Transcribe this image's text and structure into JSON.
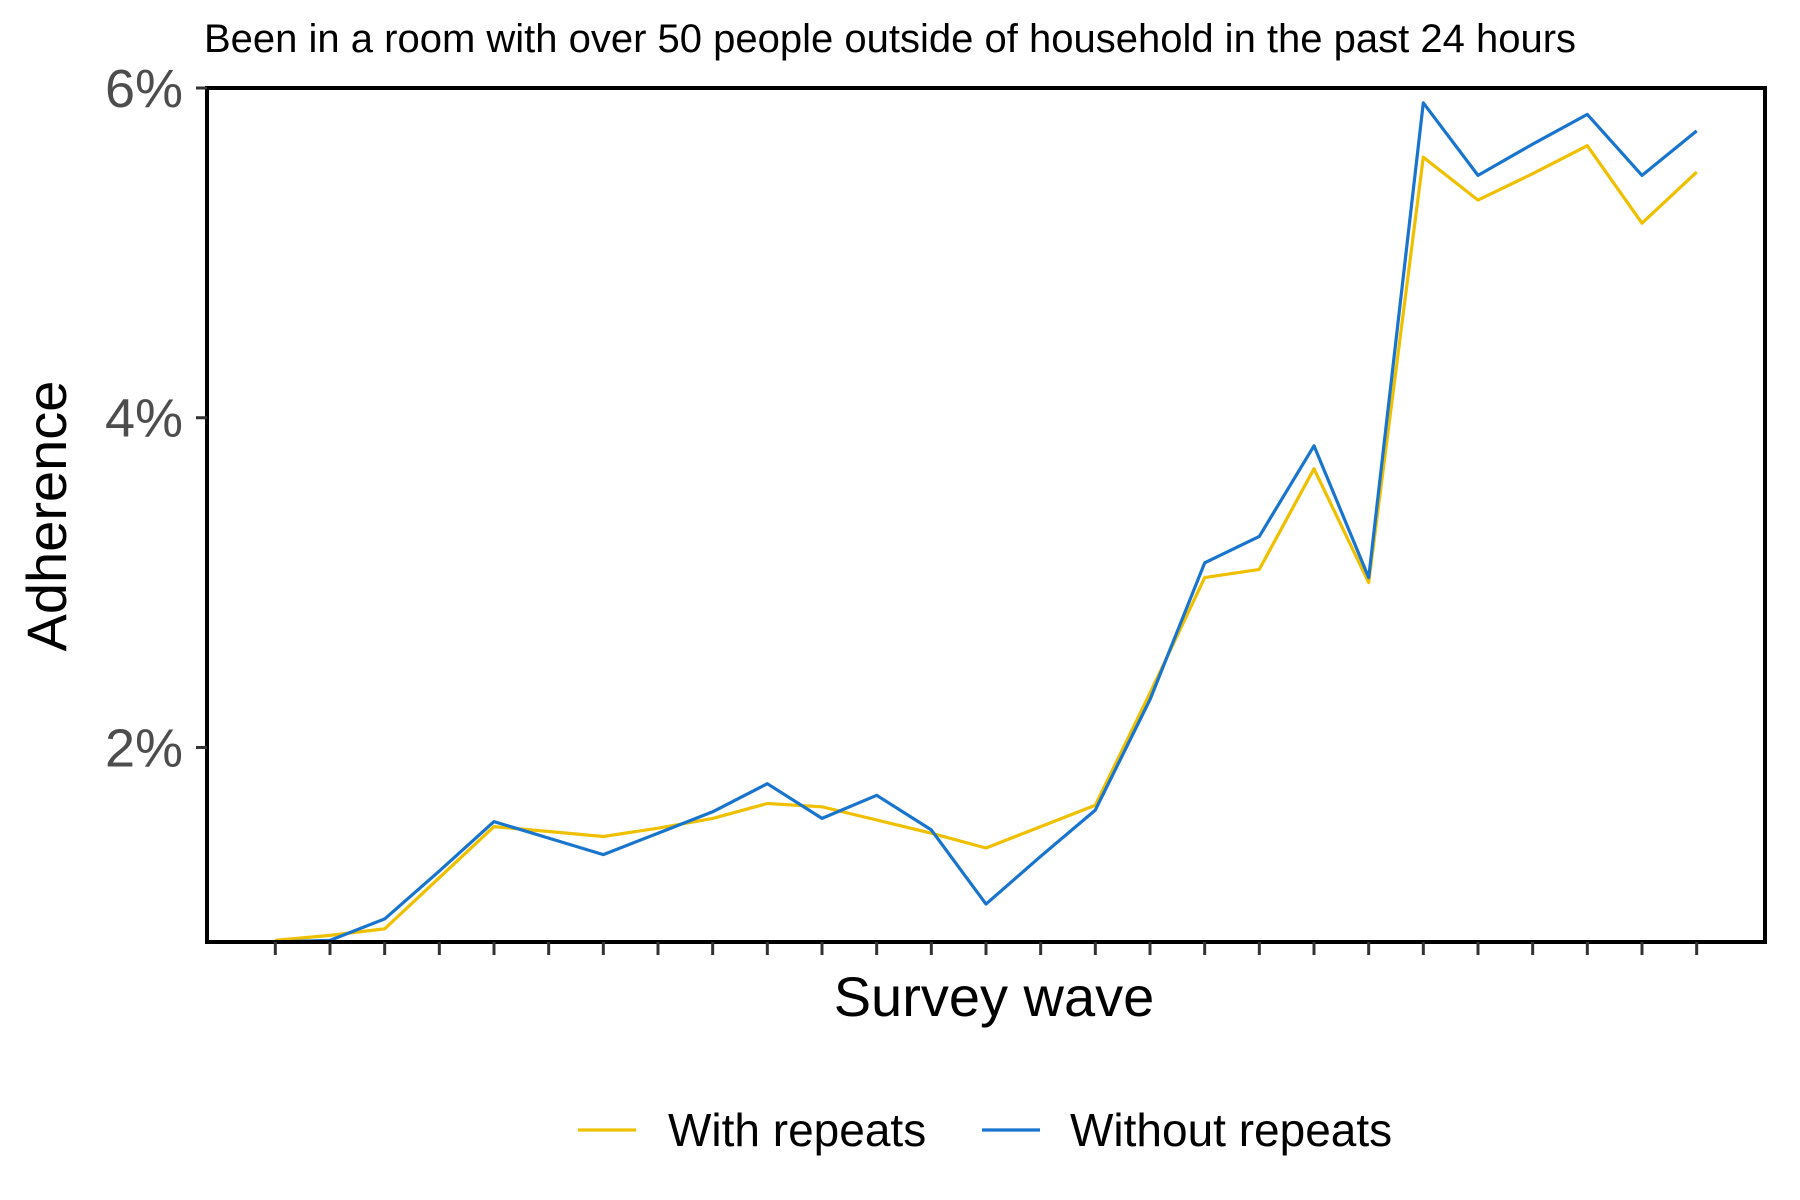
{
  "chart_data": {
    "type": "line",
    "title": "Been in a room with over 50 people outside of household in the past 24 hours",
    "xlabel": "Survey wave",
    "ylabel": "Adherence",
    "ylim": [
      0.0082,
      0.06
    ],
    "y_ticks": [
      0.02,
      0.04,
      0.06
    ],
    "y_tick_labels": [
      "2%",
      "4%",
      "6%"
    ],
    "x": [
      1,
      2,
      3,
      4,
      5,
      6,
      7,
      8,
      9,
      10,
      11,
      12,
      13,
      14,
      15,
      16,
      17,
      18,
      19,
      20,
      21,
      22,
      23,
      24,
      25,
      26,
      27
    ],
    "xlim": [
      -0.25,
      28.25
    ],
    "x_tick_labels_shown": false,
    "grid": false,
    "legend_position": "bottom",
    "series": [
      {
        "name": "With repeats",
        "color": "#EFC000",
        "values": [
          0.0083,
          0.0086,
          0.009,
          0.0121,
          0.0152,
          0.0149,
          0.0146,
          0.0151,
          0.0157,
          0.0166,
          0.0164,
          0.0156,
          0.0148,
          0.0139,
          0.0152,
          0.0165,
          0.0233,
          0.0303,
          0.0308,
          0.0369,
          0.03,
          0.0558,
          0.0532,
          0.0548,
          0.0565,
          0.0518,
          0.0549
        ]
      },
      {
        "name": "Without repeats",
        "color": "#1874CD",
        "values": [
          0.0082,
          0.0083,
          0.0096,
          0.0125,
          0.0155,
          0.0145,
          0.0135,
          0.0148,
          0.0161,
          0.0178,
          0.0157,
          0.0171,
          0.015,
          0.0105,
          0.0134,
          0.0162,
          0.0229,
          0.0312,
          0.0328,
          0.0383,
          0.0303,
          0.0591,
          0.0547,
          0.0566,
          0.0584,
          0.0547,
          0.0574
        ]
      }
    ]
  }
}
